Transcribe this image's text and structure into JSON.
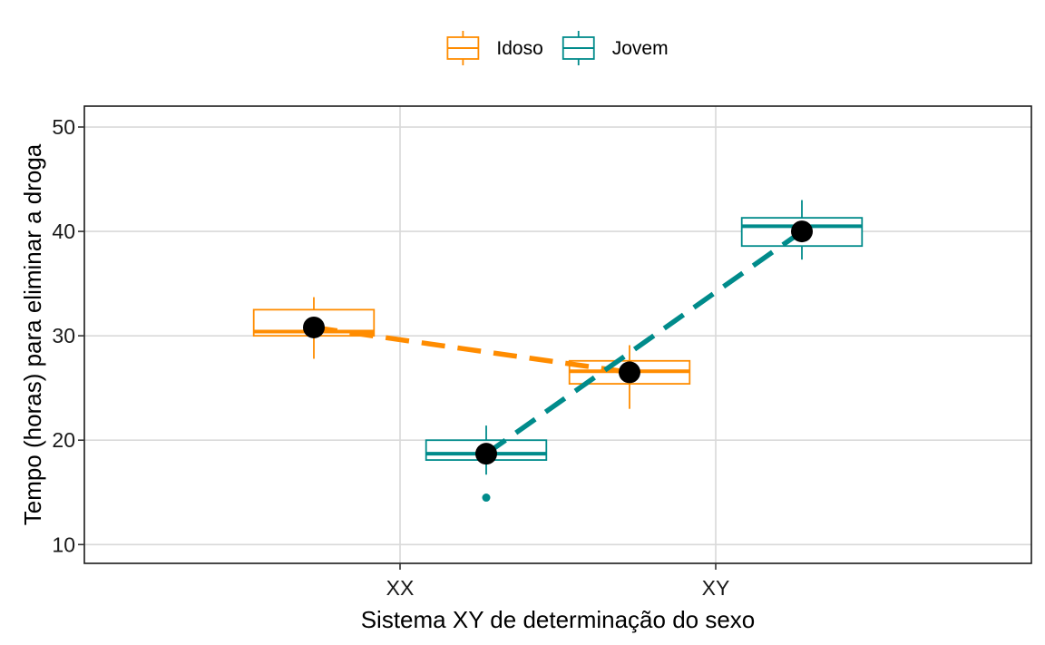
{
  "chart_data": {
    "type": "box",
    "title": "",
    "xlabel": "Sistema XY de determinação do sexo",
    "ylabel": "Tempo (horas) para eliminar a droga",
    "categories": [
      "XX",
      "XY"
    ],
    "ylim": [
      8.2,
      52
    ],
    "yticks": [
      10,
      20,
      30,
      40,
      50
    ],
    "grid": true,
    "legend_position": "top",
    "series": [
      {
        "name": "Idoso",
        "color": "#FF8C00",
        "boxes": [
          {
            "category": "XX",
            "whisker_low": 27.8,
            "q1": 30.0,
            "median": 30.4,
            "q3": 32.5,
            "whisker_high": 33.7,
            "mean": 30.8,
            "outliers": []
          },
          {
            "category": "XY",
            "whisker_low": 23.0,
            "q1": 25.4,
            "median": 26.6,
            "q3": 27.6,
            "whisker_high": 29.1,
            "mean": 26.5,
            "outliers": []
          }
        ]
      },
      {
        "name": "Jovem",
        "color": "#008B8B",
        "boxes": [
          {
            "category": "XX",
            "whisker_low": 16.7,
            "q1": 18.1,
            "median": 18.7,
            "q3": 20.0,
            "whisker_high": 21.4,
            "mean": 18.7,
            "outliers": [
              14.5
            ]
          },
          {
            "category": "XY",
            "whisker_low": 37.3,
            "q1": 38.6,
            "median": 40.5,
            "q3": 41.3,
            "whisker_high": 43.0,
            "mean": 40.0,
            "outliers": []
          }
        ]
      }
    ]
  }
}
